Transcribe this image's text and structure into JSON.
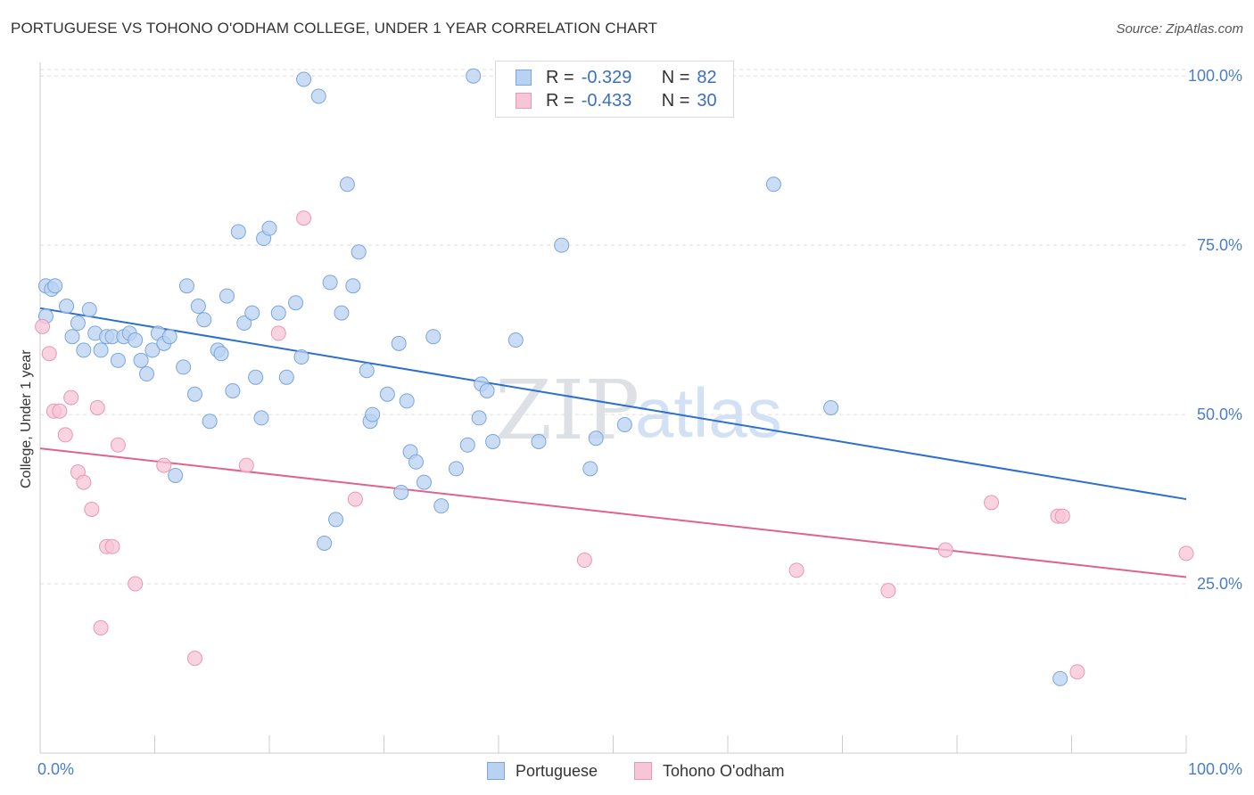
{
  "title": "PORTUGUESE VS TOHONO O'ODHAM COLLEGE, UNDER 1 YEAR CORRELATION CHART",
  "source": "Source: ZipAtlas.com",
  "watermark": {
    "zip": "ZIP",
    "atlas": "atlas"
  },
  "legend": {
    "r_label": "R =",
    "n_label": "N =",
    "series": [
      {
        "r": "-0.329",
        "n": "82"
      },
      {
        "r": "-0.433",
        "n": "30"
      }
    ]
  },
  "bottom_legend": [
    "Portuguese",
    "Tohono O'odham"
  ],
  "colors": {
    "blue_fill": "#b9d2f2",
    "blue_stroke": "#7aa6dd",
    "blue_line": "#2b6fd0",
    "pink_fill": "#f7c6d6",
    "pink_stroke": "#ea97b2",
    "pink_line": "#e0638e",
    "axis_text": "#4a7ec9",
    "grid": "#dddddd"
  },
  "chart_data": {
    "type": "scatter",
    "title": "PORTUGUESE VS TOHONO O'ODHAM COLLEGE, UNDER 1 YEAR CORRELATION CHART",
    "xlabel": "",
    "ylabel": "College, Under 1 year",
    "xlim": [
      0,
      100
    ],
    "ylim": [
      0,
      102
    ],
    "x_tick_labels": [
      "0.0%",
      "100.0%"
    ],
    "y_tick_labels": [
      "25.0%",
      "50.0%",
      "75.0%",
      "100.0%"
    ],
    "y_ticks": [
      25,
      50,
      75,
      100
    ],
    "grid": true,
    "legend_position": "top-center",
    "series": [
      {
        "name": "Portuguese",
        "r": -0.329,
        "n": 82,
        "trend": [
          [
            0,
            65.7
          ],
          [
            100,
            37.5
          ]
        ],
        "points": [
          [
            0.5,
            64.5
          ],
          [
            0.5,
            69.0
          ],
          [
            1.0,
            68.5
          ],
          [
            1.3,
            69.0
          ],
          [
            2.3,
            66.0
          ],
          [
            2.8,
            61.5
          ],
          [
            3.3,
            63.5
          ],
          [
            3.8,
            59.5
          ],
          [
            4.3,
            65.5
          ],
          [
            4.8,
            62.0
          ],
          [
            5.3,
            59.5
          ],
          [
            5.8,
            61.5
          ],
          [
            6.3,
            61.5
          ],
          [
            6.8,
            58.0
          ],
          [
            7.3,
            61.5
          ],
          [
            7.8,
            62.0
          ],
          [
            8.3,
            61.0
          ],
          [
            8.8,
            58.0
          ],
          [
            9.3,
            56.0
          ],
          [
            9.8,
            59.5
          ],
          [
            10.3,
            62.0
          ],
          [
            10.8,
            60.5
          ],
          [
            11.3,
            61.5
          ],
          [
            11.8,
            41.0
          ],
          [
            12.5,
            57.0
          ],
          [
            12.8,
            69.0
          ],
          [
            13.5,
            53.0
          ],
          [
            13.8,
            66.0
          ],
          [
            14.3,
            64.0
          ],
          [
            14.8,
            49.0
          ],
          [
            15.5,
            59.5
          ],
          [
            15.8,
            59.0
          ],
          [
            16.3,
            67.5
          ],
          [
            16.8,
            53.5
          ],
          [
            17.3,
            77.0
          ],
          [
            17.8,
            63.5
          ],
          [
            18.5,
            65.0
          ],
          [
            18.8,
            55.5
          ],
          [
            19.3,
            49.5
          ],
          [
            19.5,
            76.0
          ],
          [
            20.0,
            77.5
          ],
          [
            20.8,
            65.0
          ],
          [
            21.5,
            55.5
          ],
          [
            22.3,
            66.5
          ],
          [
            22.8,
            58.5
          ],
          [
            23.0,
            99.5
          ],
          [
            24.3,
            97.0
          ],
          [
            24.8,
            31.0
          ],
          [
            25.3,
            69.5
          ],
          [
            25.8,
            34.5
          ],
          [
            26.3,
            65.0
          ],
          [
            26.8,
            84.0
          ],
          [
            27.3,
            69.0
          ],
          [
            27.8,
            74.0
          ],
          [
            28.5,
            56.5
          ],
          [
            28.8,
            49.0
          ],
          [
            29.0,
            50.0
          ],
          [
            30.3,
            53.0
          ],
          [
            31.3,
            60.5
          ],
          [
            31.5,
            38.5
          ],
          [
            32.0,
            52.0
          ],
          [
            32.3,
            44.5
          ],
          [
            32.8,
            43.0
          ],
          [
            33.5,
            40.0
          ],
          [
            34.3,
            61.5
          ],
          [
            35.0,
            36.5
          ],
          [
            36.3,
            42.0
          ],
          [
            37.3,
            45.5
          ],
          [
            37.8,
            100.0
          ],
          [
            38.3,
            49.5
          ],
          [
            38.5,
            54.5
          ],
          [
            39.0,
            53.5
          ],
          [
            39.5,
            46.0
          ],
          [
            41.5,
            61.0
          ],
          [
            43.5,
            46.0
          ],
          [
            45.5,
            75.0
          ],
          [
            48.0,
            42.0
          ],
          [
            48.5,
            46.5
          ],
          [
            51.0,
            48.5
          ],
          [
            64.0,
            84.0
          ],
          [
            69.0,
            51.0
          ],
          [
            89.0,
            11.0
          ]
        ]
      },
      {
        "name": "Tohono O'odham",
        "r": -0.433,
        "n": 30,
        "trend": [
          [
            0,
            45.0
          ],
          [
            100,
            26.0
          ]
        ],
        "points": [
          [
            0.2,
            63.0
          ],
          [
            0.8,
            59.0
          ],
          [
            1.2,
            50.5
          ],
          [
            1.7,
            50.5
          ],
          [
            2.2,
            47.0
          ],
          [
            2.7,
            52.5
          ],
          [
            3.3,
            41.5
          ],
          [
            3.8,
            40.0
          ],
          [
            4.5,
            36.0
          ],
          [
            5.0,
            51.0
          ],
          [
            5.3,
            18.5
          ],
          [
            5.8,
            30.5
          ],
          [
            6.3,
            30.5
          ],
          [
            6.8,
            45.5
          ],
          [
            8.3,
            25.0
          ],
          [
            10.8,
            42.5
          ],
          [
            13.5,
            14.0
          ],
          [
            18.0,
            42.5
          ],
          [
            20.8,
            62.0
          ],
          [
            23.0,
            79.0
          ],
          [
            27.5,
            37.5
          ],
          [
            47.5,
            28.5
          ],
          [
            66.0,
            27.0
          ],
          [
            74.0,
            24.0
          ],
          [
            79.0,
            30.0
          ],
          [
            83.0,
            37.0
          ],
          [
            88.8,
            35.0
          ],
          [
            89.2,
            35.0
          ],
          [
            90.5,
            12.0
          ],
          [
            100.0,
            29.5
          ]
        ]
      }
    ]
  }
}
